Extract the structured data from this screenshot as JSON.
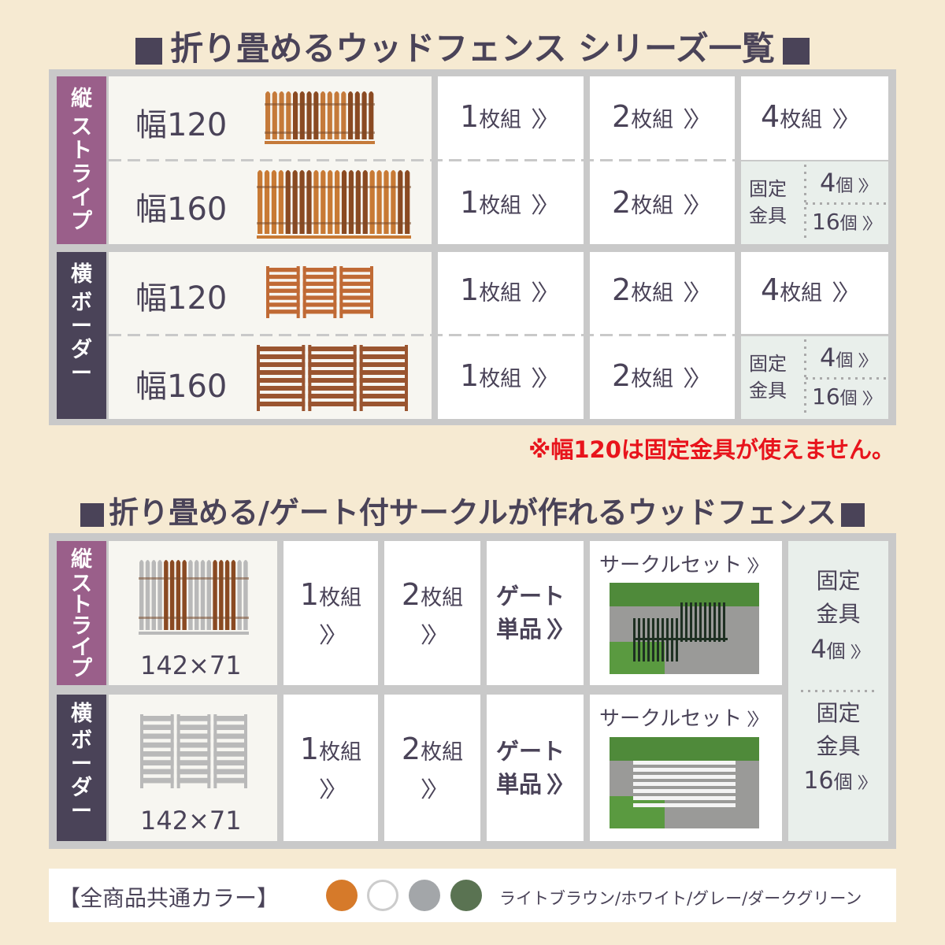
{
  "section1": {
    "title": "折り畳めるウッドフェンス シリーズ一覧",
    "groups": [
      {
        "label": [
          "縦",
          "ス",
          "ト",
          "ラ",
          "イ",
          "プ"
        ],
        "color": "#9a5f8a",
        "rows": [
          {
            "name": "幅120",
            "links": [
              {
                "n": "1",
                "u": "枚組"
              },
              {
                "n": "2",
                "u": "枚組"
              },
              {
                "n": "4",
                "u": "枚組"
              }
            ]
          },
          {
            "name": "幅160",
            "links": [
              {
                "n": "1",
                "u": "枚組"
              },
              {
                "n": "2",
                "u": "枚組"
              }
            ],
            "fixture": {
              "label1": "固定",
              "label2": "金具",
              "opt1": "4",
              "opt2": "16",
              "unit": "個"
            }
          }
        ]
      },
      {
        "label": [
          "横",
          "ボ",
          "ー",
          "ダ",
          "ー"
        ],
        "color": "#4a4358",
        "rows": [
          {
            "name": "幅120",
            "links": [
              {
                "n": "1",
                "u": "枚組"
              },
              {
                "n": "2",
                "u": "枚組"
              },
              {
                "n": "4",
                "u": "枚組"
              }
            ]
          },
          {
            "name": "幅160",
            "links": [
              {
                "n": "1",
                "u": "枚組"
              },
              {
                "n": "2",
                "u": "枚組"
              }
            ],
            "fixture": {
              "label1": "固定",
              "label2": "金具",
              "opt1": "4",
              "opt2": "16",
              "unit": "個"
            }
          }
        ]
      }
    ],
    "note": "※幅120は固定金具が使えません。",
    "arrow": "〉〉"
  },
  "section2": {
    "title": "折り畳める/ゲート付サークルが作れるウッドフェンス",
    "groups": [
      {
        "label": [
          "縦",
          "ス",
          "ト",
          "ラ",
          "イ",
          "プ"
        ],
        "size": "142×71",
        "l1n": "1",
        "l2n": "2",
        "unit": "枚組",
        "gate1": "ゲート",
        "gate2": "単品",
        "circle": "サークルセット"
      },
      {
        "label": [
          "横",
          "ボ",
          "ー",
          "ダ",
          "ー"
        ],
        "size": "142×71",
        "l1n": "1",
        "l2n": "2",
        "unit": "枚組",
        "gate1": "ゲート",
        "gate2": "単品",
        "circle": "サークルセット"
      }
    ],
    "fixture": {
      "label1": "固定",
      "label2": "金具",
      "opt1": "4",
      "opt2": "16",
      "unit": "個"
    }
  },
  "colors": {
    "label": "【全商品共通カラー】",
    "names": "ライトブラウン/ホワイト/グレー/ダークグリーン",
    "swatches": [
      "#d67a2a",
      "#ffffff",
      "#a3a6a9",
      "#5a7352"
    ]
  }
}
